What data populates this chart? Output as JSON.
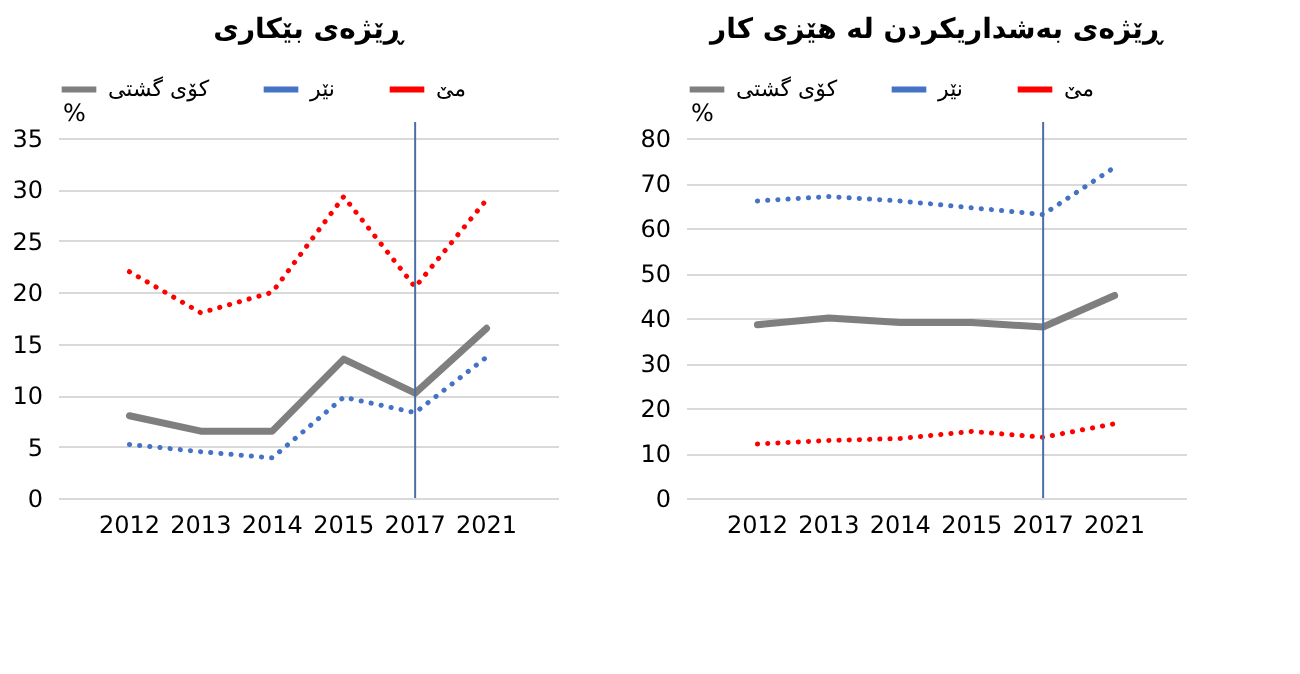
{
  "chart_data": [
    {
      "type": "line",
      "title": "ڕێژەی بێکاری",
      "ylabel": "%",
      "categories": [
        "2012",
        "2013",
        "2014",
        "2015",
        "2017",
        "2021"
      ],
      "ylim": [
        0,
        35
      ],
      "yticks": [
        0,
        5,
        10,
        15,
        20,
        25,
        30,
        35
      ],
      "grid": "y",
      "legend": "top",
      "marker": "none",
      "series": [
        {
          "name": "کۆی گشتی",
          "color": "#7f7f7f",
          "line_style": "solid",
          "values": [
            8,
            6.5,
            6.5,
            13.5,
            10.2,
            16.5
          ]
        },
        {
          "name": "نێر",
          "color": "#4472c4",
          "line_style": "dotted",
          "values": [
            5.2,
            4.5,
            3.9,
            9.8,
            8.3,
            13.7
          ]
        },
        {
          "name": "مێ",
          "color": "#ff0000",
          "line_style": "dotted",
          "values": [
            22,
            18,
            20,
            29.3,
            20.5,
            29
          ]
        }
      ],
      "ref_lines": [
        {
          "axis": "x",
          "value": "2017",
          "color": "#4a6fa5"
        }
      ]
    },
    {
      "type": "line",
      "title": "ڕێژەی بەشداریکردن لە هێزی کار",
      "ylabel": "%",
      "categories": [
        "2012",
        "2013",
        "2014",
        "2015",
        "2017",
        "2021"
      ],
      "ylim": [
        0,
        80
      ],
      "yticks": [
        0,
        10,
        20,
        30,
        40,
        50,
        60,
        70,
        80
      ],
      "grid": "y",
      "legend": "top",
      "marker": "none",
      "series": [
        {
          "name": "کۆی گشتی",
          "color": "#7f7f7f",
          "line_style": "solid",
          "values": [
            38.5,
            40,
            39,
            39,
            38,
            45
          ]
        },
        {
          "name": "نێر",
          "color": "#4472c4",
          "line_style": "dotted",
          "values": [
            66,
            67,
            66,
            64.5,
            63,
            73.5
          ]
        },
        {
          "name": "مێ",
          "color": "#ff0000",
          "line_style": "dotted",
          "values": [
            12,
            12.8,
            13.2,
            14.8,
            13.5,
            16.5
          ]
        }
      ],
      "ref_lines": [
        {
          "axis": "x",
          "value": "2017",
          "color": "#4a6fa5"
        }
      ]
    }
  ]
}
